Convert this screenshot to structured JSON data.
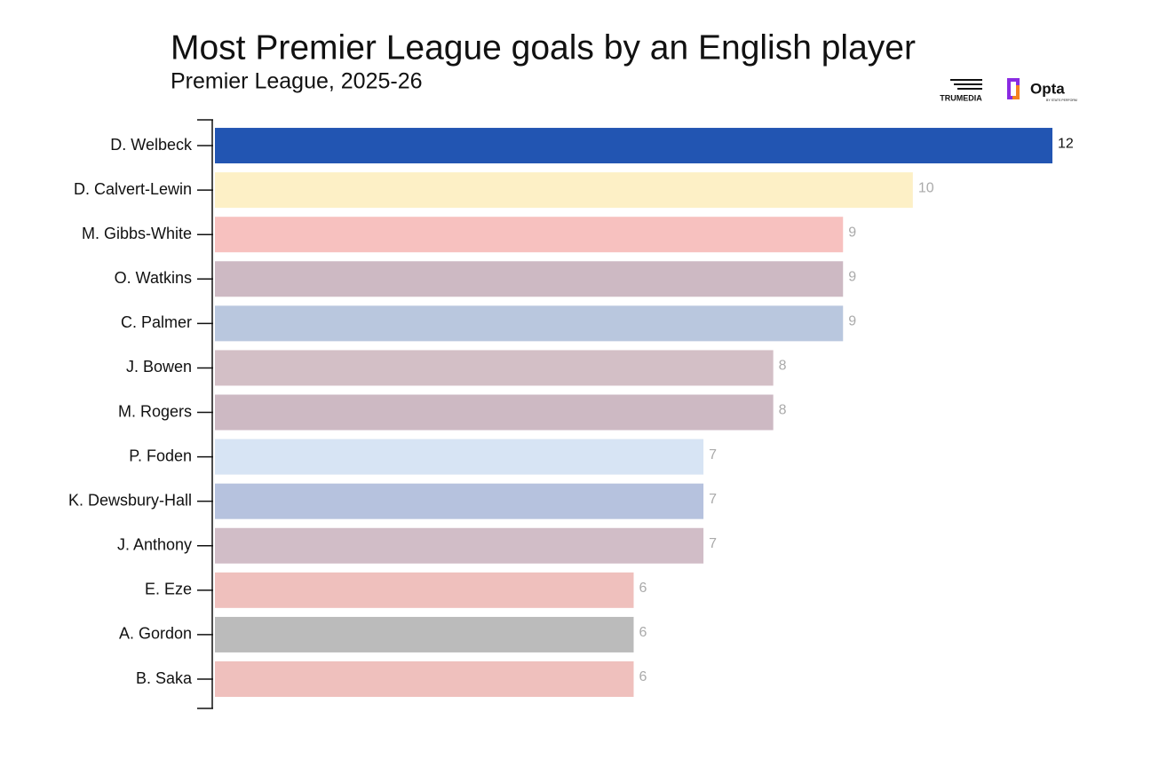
{
  "chart_data": {
    "type": "barh",
    "title": "Most Premier League goals by an English player",
    "subtitle": "Premier League, 2025-26",
    "logos": [
      "TRUMEDIA",
      "Opta",
      "BY STATS PERFORM"
    ],
    "categories": [
      "D. Welbeck",
      "D. Calvert-Lewin",
      "M. Gibbs-White",
      "O. Watkins",
      "C. Palmer",
      "J. Bowen",
      "M. Rogers",
      "P. Foden",
      "K. Dewsbury-Hall",
      "J. Anthony",
      "E. Eze",
      "A. Gordon",
      "B. Saka"
    ],
    "values": [
      12,
      10,
      9,
      9,
      9,
      8,
      8,
      7,
      7,
      7,
      6,
      6,
      6
    ],
    "colors": [
      "#2255b2",
      "#fdf0c6",
      "#f7c1bf",
      "#cdb9c3",
      "#b9c7de",
      "#d3bfc6",
      "#cdb9c3",
      "#d7e4f4",
      "#b6c2de",
      "#d1bdc7",
      "#efc0bd",
      "#bbbbbb",
      "#efc0bd"
    ],
    "xlim": [
      0,
      12
    ]
  }
}
